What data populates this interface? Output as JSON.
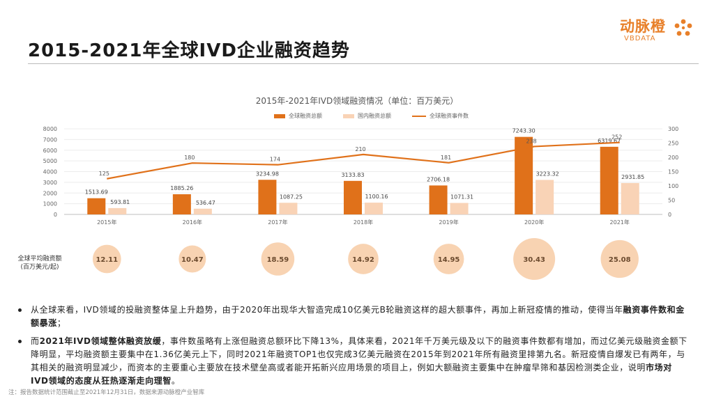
{
  "page": {
    "title": "2015-2021年全球IVD企业融资趋势",
    "logo_cn": "动脉橙",
    "logo_en": "VBDATA",
    "note": "注：报告数据统计范围截止至2021年12月31日，数据来源动脉橙产业智库"
  },
  "colors": {
    "global_bar": "#e0711a",
    "domestic_bar": "#f9d3b6",
    "line": "#e0711a",
    "bubble": "#f7cba5",
    "logo": "#e8802a"
  },
  "chart_data": {
    "type": "bar",
    "title": "2015年-2021年IVD领域融资情况（单位：百万美元）",
    "categories": [
      "2015年",
      "2016年",
      "2017年",
      "2018年",
      "2019年",
      "2020年",
      "2021年"
    ],
    "series": [
      {
        "name": "全球融资总额",
        "type": "bar",
        "axis": "left",
        "values": [
          1513.69,
          1885.26,
          3234.98,
          3133.83,
          2706.18,
          7243.3,
          6319.67
        ],
        "labels": [
          "1513.69",
          "1885.26",
          "3234.98",
          "3133.83",
          "2706.18",
          "7243.30",
          "6319.67"
        ]
      },
      {
        "name": "国内融资总额",
        "type": "bar",
        "axis": "left",
        "values": [
          593.81,
          536.47,
          1087.25,
          1100.16,
          1071.31,
          3223.32,
          2931.85
        ],
        "labels": [
          "593.81",
          "536.47",
          "1087.25",
          "1100.16",
          "1071.31",
          "3223.32",
          "2931.85"
        ]
      },
      {
        "name": "全球融资事件数",
        "type": "line",
        "axis": "right",
        "values": [
          125,
          180,
          174,
          210,
          181,
          238,
          252
        ],
        "labels": [
          "125",
          "180",
          "174",
          "210",
          "181",
          "238",
          "252"
        ]
      }
    ],
    "ylim_left": [
      0,
      8000
    ],
    "yticks_left": [
      0,
      1000,
      2000,
      3000,
      4000,
      5000,
      6000,
      7000,
      8000
    ],
    "ylim_right": [
      0,
      300
    ],
    "yticks_right": [
      0,
      50,
      100,
      150,
      200,
      250,
      300
    ],
    "grid": true,
    "legend": "top-center",
    "avg_label": [
      "全球平均融资额",
      "(百万美元/起)"
    ],
    "avg_values": [
      12.11,
      10.47,
      18.59,
      14.92,
      14.95,
      30.43,
      25.08
    ],
    "avg_labels": [
      "12.11",
      "10.47",
      "18.59",
      "14.92",
      "14.95",
      "30.43",
      "25.08"
    ]
  },
  "bullets": [
    {
      "parts": [
        {
          "text": "从全球来看，IVD领域的投融资整体呈上升趋势，由于2020年出现华大智造完成10亿美元B轮融资这样的超大额事件，再加上新冠疫情的推动，使得当年",
          "bold": false
        },
        {
          "text": "融资事件数和金额暴涨",
          "bold": true
        },
        {
          "text": "；",
          "bold": false
        }
      ]
    },
    {
      "parts": [
        {
          "text": "而",
          "bold": false
        },
        {
          "text": "2021年IVD领域整体融资放缓",
          "bold": true
        },
        {
          "text": "，事件数虽略有上涨但融资总额环比下降13%，具体来看，2021年千万美元级及以下的融资事件数都有增加，而过亿美元级融资金额下降明显，平均融资额主要集中在1.36亿美元上下，同时2021年融资TOP1也仅完成3亿美元融资在2015年到2021年所有融资里排第九名。新冠疫情自爆发已有两年，与其相关的融资明显减少，而资本的主要重心主要放在技术壁垒高或者能开拓新兴应用场景的项目上，例如大额融资主要集中在肿瘤早筛和基因检测类企业，说明",
          "bold": false
        },
        {
          "text": "市场对IVD领域的态度从狂热逐渐走向理智",
          "bold": true
        },
        {
          "text": "。",
          "bold": false
        }
      ]
    }
  ]
}
